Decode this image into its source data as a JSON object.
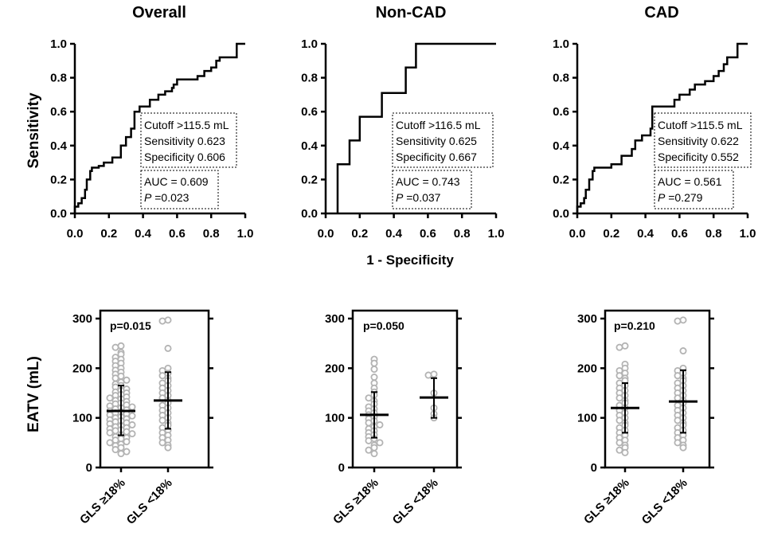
{
  "figure": {
    "roc_ylabel": "Sensitivity",
    "roc_xlabel": "1 - Specificity",
    "scatter_ylabel": "EATV (mL)"
  },
  "chart_data": [
    {
      "type": "line",
      "panel": "roc",
      "title": "Overall",
      "xlabel": "1 - Specificity",
      "ylabel": "Sensitivity",
      "xlim": [
        0,
        1
      ],
      "ylim": [
        0,
        1
      ],
      "x_ticks": [
        "0.0",
        "0.2",
        "0.4",
        "0.6",
        "0.8",
        "1.0"
      ],
      "y_ticks": [
        "0.0",
        "0.2",
        "0.4",
        "0.6",
        "0.8",
        "1.0"
      ],
      "curve": [
        [
          0,
          0
        ],
        [
          0,
          0.04
        ],
        [
          0.02,
          0.04
        ],
        [
          0.02,
          0.06
        ],
        [
          0.04,
          0.06
        ],
        [
          0.04,
          0.09
        ],
        [
          0.06,
          0.09
        ],
        [
          0.06,
          0.14
        ],
        [
          0.07,
          0.14
        ],
        [
          0.07,
          0.2
        ],
        [
          0.09,
          0.2
        ],
        [
          0.09,
          0.25
        ],
        [
          0.1,
          0.25
        ],
        [
          0.1,
          0.27
        ],
        [
          0.14,
          0.27
        ],
        [
          0.14,
          0.28
        ],
        [
          0.17,
          0.28
        ],
        [
          0.17,
          0.3
        ],
        [
          0.22,
          0.3
        ],
        [
          0.22,
          0.33
        ],
        [
          0.27,
          0.33
        ],
        [
          0.27,
          0.4
        ],
        [
          0.3,
          0.4
        ],
        [
          0.3,
          0.45
        ],
        [
          0.33,
          0.45
        ],
        [
          0.33,
          0.5
        ],
        [
          0.35,
          0.5
        ],
        [
          0.35,
          0.6
        ],
        [
          0.38,
          0.6
        ],
        [
          0.38,
          0.63
        ],
        [
          0.44,
          0.63
        ],
        [
          0.44,
          0.67
        ],
        [
          0.49,
          0.67
        ],
        [
          0.49,
          0.7
        ],
        [
          0.53,
          0.7
        ],
        [
          0.53,
          0.72
        ],
        [
          0.57,
          0.72
        ],
        [
          0.57,
          0.74
        ],
        [
          0.58,
          0.74
        ],
        [
          0.58,
          0.76
        ],
        [
          0.6,
          0.76
        ],
        [
          0.6,
          0.79
        ],
        [
          0.72,
          0.79
        ],
        [
          0.72,
          0.81
        ],
        [
          0.76,
          0.81
        ],
        [
          0.76,
          0.84
        ],
        [
          0.8,
          0.84
        ],
        [
          0.8,
          0.86
        ],
        [
          0.83,
          0.86
        ],
        [
          0.83,
          0.9
        ],
        [
          0.85,
          0.9
        ],
        [
          0.85,
          0.92
        ],
        [
          0.95,
          0.92
        ],
        [
          0.95,
          1
        ],
        [
          1,
          1
        ]
      ],
      "stats": {
        "cutoff": "Cutoff >115.5 mL",
        "sensitivity": "Sensitivity 0.623",
        "specificity": "Specificity 0.606",
        "auc": "AUC = 0.609",
        "p_label": "P",
        "p_value": " =0.023"
      }
    },
    {
      "type": "line",
      "panel": "roc",
      "title": "Non-CAD",
      "xlabel": "1 - Specificity",
      "ylabel": "Sensitivity",
      "xlim": [
        0,
        1
      ],
      "ylim": [
        0,
        1
      ],
      "x_ticks": [
        "0.0",
        "0.2",
        "0.4",
        "0.6",
        "0.8",
        "1.0"
      ],
      "y_ticks": [
        "0.0",
        "0.2",
        "0.4",
        "0.6",
        "0.8",
        "1.0"
      ],
      "curve": [
        [
          0.07,
          0
        ],
        [
          0.07,
          0.29
        ],
        [
          0.14,
          0.29
        ],
        [
          0.14,
          0.43
        ],
        [
          0.2,
          0.43
        ],
        [
          0.2,
          0.57
        ],
        [
          0.33,
          0.57
        ],
        [
          0.33,
          0.71
        ],
        [
          0.47,
          0.71
        ],
        [
          0.47,
          0.86
        ],
        [
          0.53,
          0.86
        ],
        [
          0.53,
          1
        ],
        [
          1,
          1
        ]
      ],
      "stats": {
        "cutoff": "Cutoff >116.5 mL",
        "sensitivity": "Sensitivity 0.625",
        "specificity": "Specificity 0.667",
        "auc": "AUC = 0.743",
        "p_label": "P",
        "p_value": " =0.037"
      }
    },
    {
      "type": "line",
      "panel": "roc",
      "title": "CAD",
      "xlabel": "1 - Specificity",
      "ylabel": "Sensitivity",
      "xlim": [
        0,
        1
      ],
      "ylim": [
        0,
        1
      ],
      "x_ticks": [
        "0.0",
        "0.2",
        "0.4",
        "0.6",
        "0.8",
        "1.0"
      ],
      "y_ticks": [
        "0.0",
        "0.2",
        "0.4",
        "0.6",
        "0.8",
        "1.0"
      ],
      "curve": [
        [
          0,
          0
        ],
        [
          0,
          0.04
        ],
        [
          0.02,
          0.04
        ],
        [
          0.02,
          0.06
        ],
        [
          0.04,
          0.06
        ],
        [
          0.04,
          0.09
        ],
        [
          0.05,
          0.09
        ],
        [
          0.05,
          0.14
        ],
        [
          0.07,
          0.14
        ],
        [
          0.07,
          0.2
        ],
        [
          0.09,
          0.2
        ],
        [
          0.09,
          0.25
        ],
        [
          0.1,
          0.25
        ],
        [
          0.1,
          0.27
        ],
        [
          0.2,
          0.27
        ],
        [
          0.2,
          0.29
        ],
        [
          0.26,
          0.29
        ],
        [
          0.26,
          0.34
        ],
        [
          0.32,
          0.34
        ],
        [
          0.32,
          0.38
        ],
        [
          0.34,
          0.38
        ],
        [
          0.34,
          0.43
        ],
        [
          0.38,
          0.43
        ],
        [
          0.38,
          0.46
        ],
        [
          0.43,
          0.46
        ],
        [
          0.43,
          0.5
        ],
        [
          0.44,
          0.5
        ],
        [
          0.44,
          0.63
        ],
        [
          0.57,
          0.63
        ],
        [
          0.57,
          0.67
        ],
        [
          0.6,
          0.67
        ],
        [
          0.6,
          0.7
        ],
        [
          0.66,
          0.7
        ],
        [
          0.66,
          0.73
        ],
        [
          0.69,
          0.73
        ],
        [
          0.69,
          0.76
        ],
        [
          0.75,
          0.76
        ],
        [
          0.75,
          0.78
        ],
        [
          0.8,
          0.78
        ],
        [
          0.8,
          0.81
        ],
        [
          0.83,
          0.81
        ],
        [
          0.83,
          0.84
        ],
        [
          0.86,
          0.84
        ],
        [
          0.86,
          0.88
        ],
        [
          0.88,
          0.88
        ],
        [
          0.88,
          0.92
        ],
        [
          0.94,
          0.92
        ],
        [
          0.94,
          1
        ],
        [
          1,
          1
        ]
      ],
      "stats": {
        "cutoff": "Cutoff >115.5 mL",
        "sensitivity": "Sensitivity 0.622",
        "specificity": "Specificity 0.552",
        "auc": "AUC = 0.561",
        "p_label": "P",
        "p_value": " =0.279"
      }
    },
    {
      "type": "scatter",
      "panel": "dot",
      "group": "Overall",
      "ylabel": "EATV (mL)",
      "ylim": [
        0,
        300
      ],
      "y_ticks": [
        "0",
        "100",
        "200",
        "300"
      ],
      "categories": [
        "GLS ≥18%",
        "GLS <18%"
      ],
      "p_text": "p=0.015",
      "series": [
        {
          "name": "GLS ≥18%",
          "mean": 114,
          "sd_low": 65,
          "sd_high": 165,
          "values": [
            245,
            242,
            232,
            228,
            222,
            218,
            214,
            210,
            205,
            200,
            196,
            192,
            188,
            184,
            180,
            176,
            172,
            168,
            165,
            162,
            158,
            155,
            152,
            150,
            147,
            145,
            142,
            140,
            138,
            135,
            133,
            130,
            128,
            126,
            124,
            122,
            120,
            118,
            116,
            114,
            112,
            110,
            108,
            106,
            104,
            102,
            100,
            98,
            96,
            94,
            92,
            90,
            88,
            86,
            84,
            82,
            80,
            78,
            76,
            74,
            72,
            70,
            68,
            65,
            62,
            60,
            58,
            55,
            52,
            50,
            47,
            44,
            40,
            36,
            32,
            28
          ]
        },
        {
          "name": "GLS <18%",
          "mean": 135,
          "sd_low": 78,
          "sd_high": 192,
          "values": [
            297,
            295,
            240,
            200,
            195,
            190,
            185,
            180,
            175,
            170,
            165,
            160,
            155,
            150,
            145,
            140,
            135,
            130,
            125,
            120,
            115,
            110,
            105,
            100,
            95,
            90,
            85,
            80,
            75,
            70,
            65,
            60,
            55,
            50,
            45,
            40
          ]
        }
      ]
    },
    {
      "type": "scatter",
      "panel": "dot",
      "group": "Non-CAD",
      "ylabel": "EATV (mL)",
      "ylim": [
        0,
        300
      ],
      "y_ticks": [
        "0",
        "100",
        "200",
        "300"
      ],
      "categories": [
        "GLS ≥18%",
        "GLS <18%"
      ],
      "p_text": "p=0.050",
      "series": [
        {
          "name": "GLS ≥18%",
          "mean": 106,
          "sd_low": 60,
          "sd_high": 152,
          "values": [
            218,
            210,
            198,
            182,
            170,
            160,
            152,
            146,
            140,
            134,
            128,
            122,
            118,
            114,
            110,
            106,
            102,
            98,
            94,
            90,
            86,
            82,
            78,
            74,
            70,
            66,
            62,
            58,
            54,
            50,
            45,
            40,
            35,
            28
          ]
        },
        {
          "name": "GLS <18%",
          "mean": 141,
          "sd_low": 100,
          "sd_high": 180,
          "values": [
            188,
            186,
            150,
            120,
            108,
            100
          ]
        }
      ]
    },
    {
      "type": "scatter",
      "panel": "dot",
      "group": "CAD",
      "ylabel": "EATV (mL)",
      "ylim": [
        0,
        300
      ],
      "y_ticks": [
        "0",
        "100",
        "200",
        "300"
      ],
      "categories": [
        "GLS ≥18%",
        "GLS <18%"
      ],
      "p_text": "p=0.210",
      "series": [
        {
          "name": "GLS ≥18%",
          "mean": 120,
          "sd_low": 70,
          "sd_high": 170,
          "values": [
            245,
            242,
            208,
            200,
            195,
            190,
            185,
            180,
            175,
            170,
            165,
            160,
            155,
            150,
            145,
            140,
            135,
            130,
            125,
            120,
            115,
            110,
            105,
            100,
            95,
            90,
            85,
            80,
            75,
            70,
            65,
            60,
            55,
            50,
            45,
            40,
            35,
            30
          ]
        },
        {
          "name": "GLS <18%",
          "mean": 133,
          "sd_low": 70,
          "sd_high": 196,
          "values": [
            297,
            295,
            235,
            200,
            195,
            190,
            185,
            180,
            175,
            170,
            165,
            160,
            155,
            150,
            145,
            140,
            135,
            130,
            125,
            120,
            115,
            110,
            105,
            100,
            95,
            90,
            85,
            80,
            75,
            70,
            65,
            60,
            55,
            50,
            45,
            40
          ]
        }
      ]
    }
  ]
}
